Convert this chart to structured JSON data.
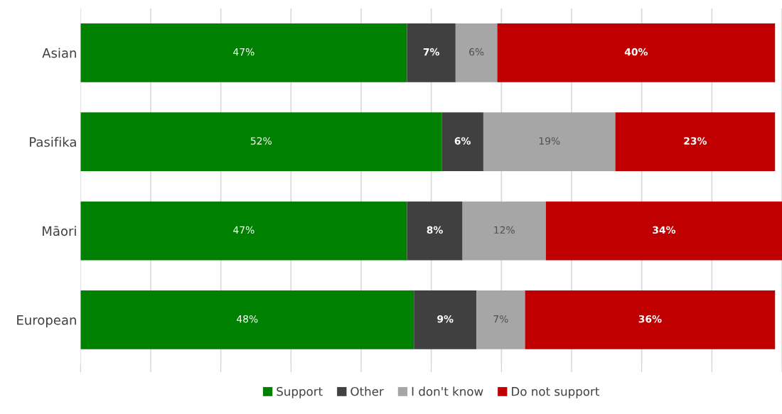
{
  "chart_data": {
    "type": "bar",
    "orientation": "horizontal",
    "stacked": true,
    "categories": [
      "Asian",
      "Pasifika",
      "Māori",
      "European"
    ],
    "series": [
      {
        "name": "Support",
        "color": "#008000",
        "values": [
          47,
          52,
          47,
          48
        ],
        "value_labels": [
          "47%",
          "52%",
          "47%",
          "48%"
        ]
      },
      {
        "name": "Other",
        "color": "#404040",
        "values": [
          7,
          6,
          8,
          9
        ],
        "value_labels": [
          "7%",
          "6%",
          "8%",
          "9%"
        ]
      },
      {
        "name": "I don't know",
        "color": "#a6a6a6",
        "values": [
          6,
          19,
          12,
          7
        ],
        "value_labels": [
          "6%",
          "19%",
          "12%",
          "7%"
        ]
      },
      {
        "name": "Do not support",
        "color": "#c00000",
        "values": [
          40,
          23,
          34,
          36
        ],
        "value_labels": [
          "40%",
          "23%",
          "34%",
          "36%"
        ]
      }
    ],
    "grid": "x",
    "legend": "bottom",
    "tick_labels": "y"
  }
}
